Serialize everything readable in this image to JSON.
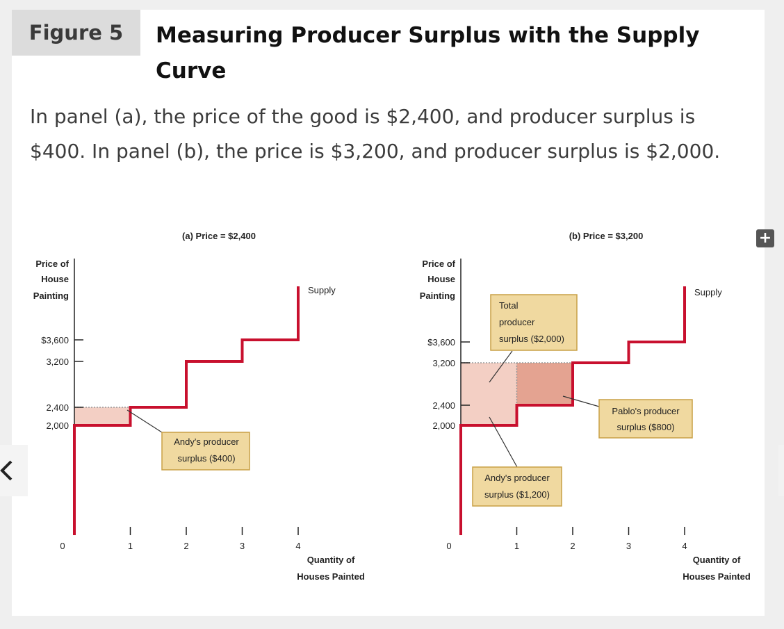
{
  "figure": {
    "label": "Figure 5",
    "title": "Measuring Producer Surplus with the Supply Curve",
    "caption": "In panel (a), the price of the good is $2,400, and producer surplus is $400. In panel (b), the price is $3,200, and producer surplus is $2,000."
  },
  "controls": {
    "plus_label": "+"
  },
  "colors": {
    "supply": "#c8102e",
    "surplus_light": "#f3cfc4",
    "surplus_dark": "#e4a391",
    "callout_fill": "#f0d9a0",
    "callout_border": "#c9a046",
    "axis": "#222222"
  },
  "chart_data": [
    {
      "type": "line",
      "title": "(a) Price = $2,400",
      "ylabel": [
        "Price of",
        "House",
        "Painting"
      ],
      "xlabel": [
        "Quantity of",
        "Houses Painted"
      ],
      "x_ticks": [
        "0",
        "1",
        "2",
        "3",
        "4"
      ],
      "y_ticks": [
        {
          "value": 2000,
          "label": "2,000"
        },
        {
          "value": 2400,
          "label": "2,400"
        },
        {
          "value": 3200,
          "label": "3,200"
        },
        {
          "value": 3600,
          "label": "$3,600"
        }
      ],
      "series": [
        {
          "name": "Supply",
          "steps": [
            [
              0,
              2000
            ],
            [
              1,
              2400
            ],
            [
              2,
              3200
            ],
            [
              3,
              3600
            ],
            [
              4,
              4200
            ]
          ]
        }
      ],
      "price": 2400,
      "surplus_regions": [
        {
          "x0": 0,
          "x1": 1,
          "y0": 2000,
          "y1": 2400,
          "shade": "light"
        }
      ],
      "annotations": [
        {
          "lines": [
            "Andy's producer",
            "surplus ($400)"
          ]
        }
      ]
    },
    {
      "type": "line",
      "title": "(b) Price = $3,200",
      "ylabel": [
        "Price of",
        "House",
        "Painting"
      ],
      "xlabel": [
        "Quantity of",
        "Houses Painted"
      ],
      "x_ticks": [
        "0",
        "1",
        "2",
        "3",
        "4"
      ],
      "y_ticks": [
        {
          "value": 2000,
          "label": "2,000"
        },
        {
          "value": 2400,
          "label": "2,400"
        },
        {
          "value": 3200,
          "label": "3,200"
        },
        {
          "value": 3600,
          "label": "$3,600"
        }
      ],
      "series": [
        {
          "name": "Supply",
          "steps": [
            [
              0,
              2000
            ],
            [
              1,
              2400
            ],
            [
              2,
              3200
            ],
            [
              3,
              3600
            ],
            [
              4,
              4200
            ]
          ]
        }
      ],
      "price": 3200,
      "surplus_regions": [
        {
          "x0": 0,
          "x1": 1,
          "y0": 2000,
          "y1": 3200,
          "shade": "light"
        },
        {
          "x0": 1,
          "x1": 2,
          "y0": 2400,
          "y1": 3200,
          "shade": "dark"
        }
      ],
      "annotations": [
        {
          "lines": [
            "Total",
            "producer",
            "surplus ($2,000)"
          ]
        },
        {
          "lines": [
            "Pablo's producer",
            "surplus ($800)"
          ]
        },
        {
          "lines": [
            "Andy's producer",
            "surplus ($1,200)"
          ]
        }
      ]
    }
  ]
}
